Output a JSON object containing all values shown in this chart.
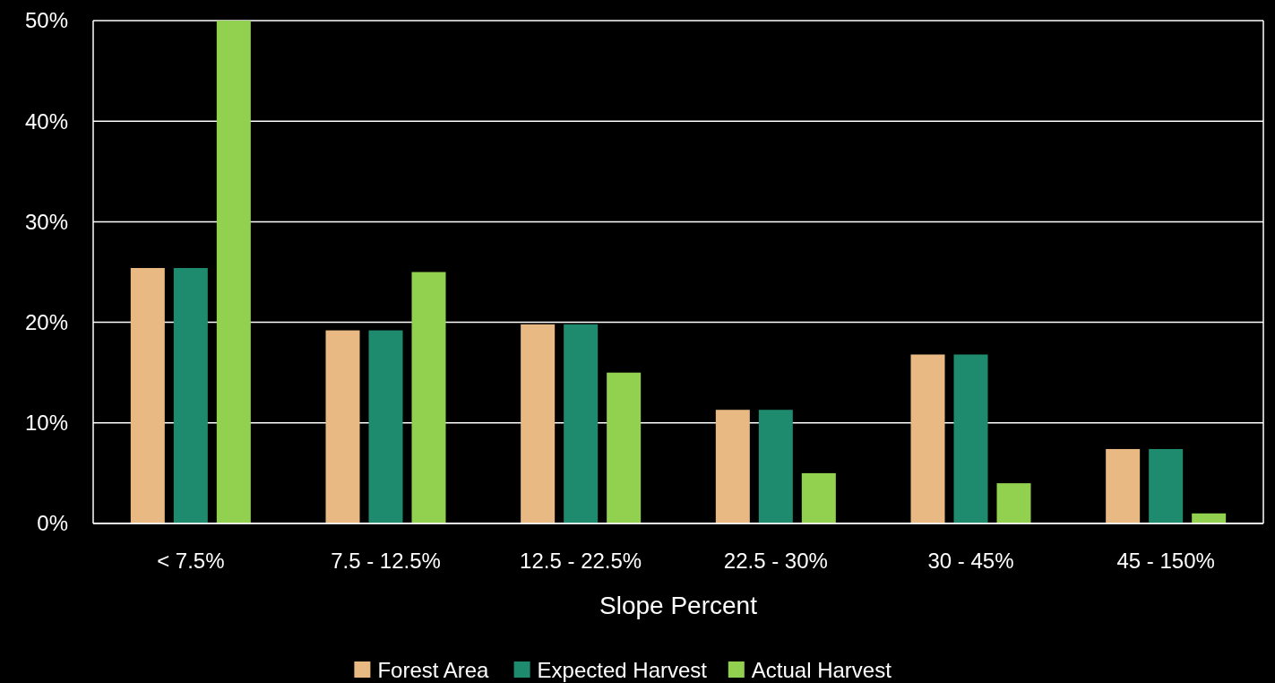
{
  "chart_data": {
    "type": "bar",
    "xlabel": "Slope Percent",
    "categories": [
      "< 7.5%",
      "7.5 - 12.5%",
      "12.5 - 22.5%",
      "22.5 - 30%",
      "30 - 45%",
      "45 - 150%"
    ],
    "series": [
      {
        "name": "Forest Area",
        "color": "#e9b984",
        "values": [
          25.4,
          19.2,
          19.8,
          11.3,
          16.8,
          7.4
        ]
      },
      {
        "name": "Expected Harvest",
        "color": "#1e8a6e",
        "values": [
          25.4,
          19.2,
          19.8,
          11.3,
          16.8,
          7.4
        ]
      },
      {
        "name": "Actual Harvest",
        "color": "#92d050",
        "values": [
          50,
          25,
          15,
          5,
          4,
          1
        ]
      }
    ],
    "ylim": [
      0,
      50
    ],
    "yticks": [
      {
        "value": 0,
        "label": "0%"
      },
      {
        "value": 10,
        "label": "10%"
      },
      {
        "value": 20,
        "label": "20%"
      },
      {
        "value": 30,
        "label": "30%"
      },
      {
        "value": 40,
        "label": "40%"
      },
      {
        "value": 50,
        "label": "50%"
      }
    ],
    "grid": "y",
    "legend": "bottom"
  }
}
